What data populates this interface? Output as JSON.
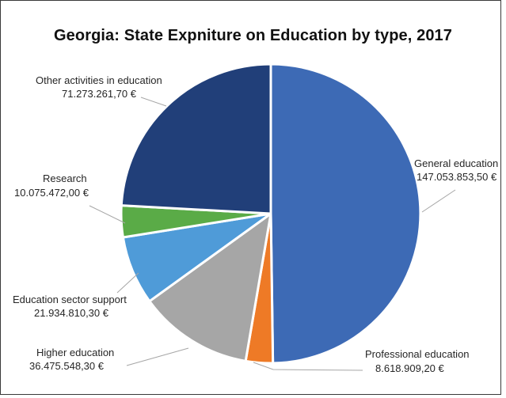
{
  "chart_data": {
    "type": "pie",
    "title": "Georgia: State Expniture on Education by type, 2017",
    "unit": "€",
    "slices": [
      {
        "name": "General education",
        "value_label": "147.053.853,50 €",
        "value": 147053853.5,
        "color": "#3d6ab5"
      },
      {
        "name": "Professional education",
        "value_label": "8.618.909,20 €",
        "value": 8618909.2,
        "color": "#ee7a26"
      },
      {
        "name": "Higher education",
        "value_label": "36.475.548,30 €",
        "value": 36475548.3,
        "color": "#a6a6a6"
      },
      {
        "name": "Education sector support",
        "value_label": "21.934.810,30 €",
        "value": 21934810.3,
        "color": "#4f9bd8"
      },
      {
        "name": "Research",
        "value_label": "10.075.472,00 €",
        "value": 10075472.0,
        "color": "#5aab47"
      },
      {
        "name": "Other activities in education",
        "value_label": "71.273.261,70 €",
        "value": 71273261.7,
        "color": "#213f79"
      }
    ],
    "start_angle_deg": 0,
    "direction": "clockwise",
    "legend": "none",
    "data_labels": "outside with leader lines"
  }
}
